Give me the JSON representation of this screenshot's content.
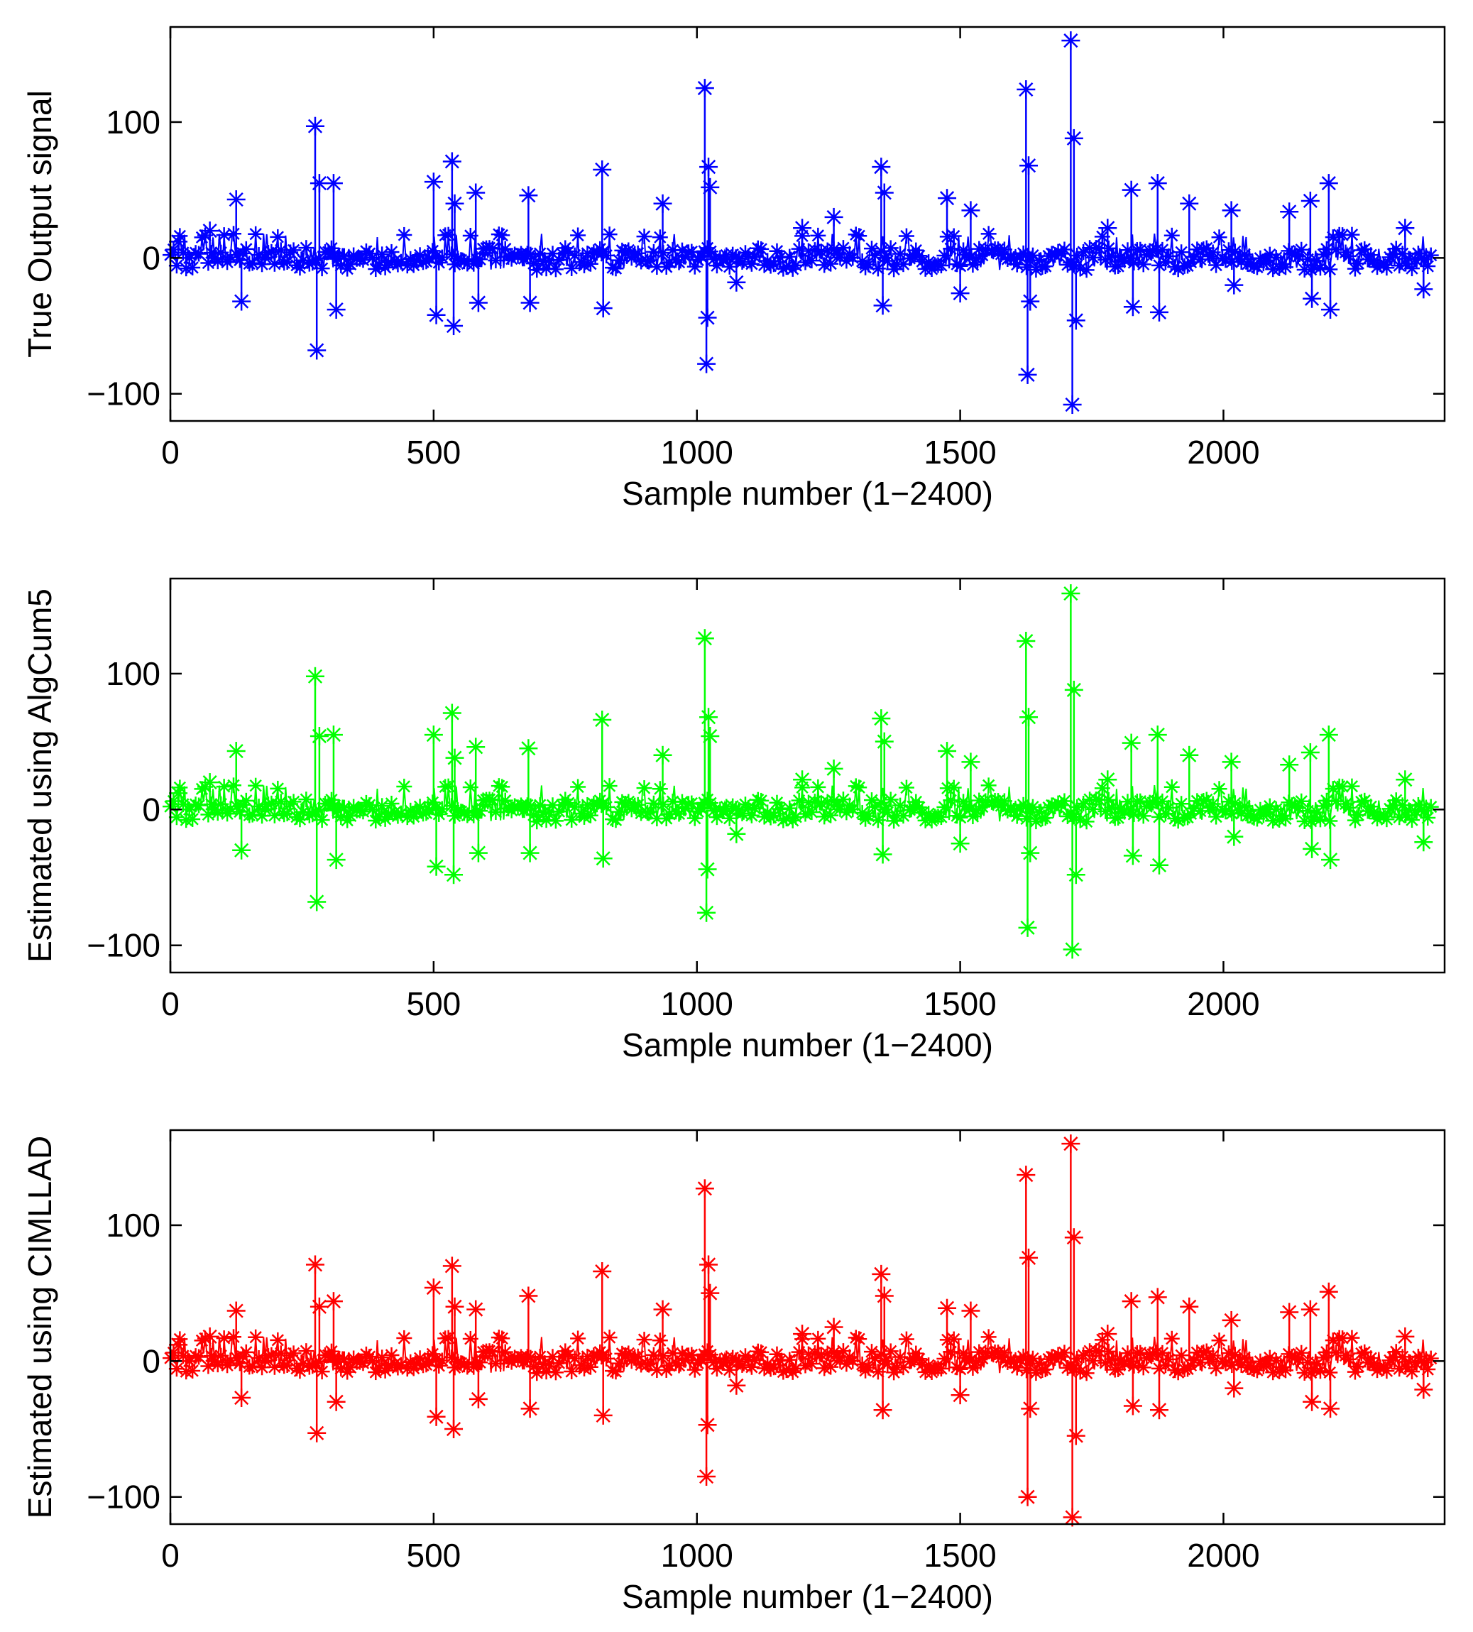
{
  "chart_data": [
    {
      "type": "line",
      "marker": "asterisk",
      "color": "#0000ff",
      "xlabel": "Sample number (1−2400)",
      "ylabel": "True Output signal",
      "xlim": [
        0,
        2420
      ],
      "ylim": [
        -120,
        170
      ],
      "xticks": [
        0,
        500,
        1000,
        1500,
        2000
      ],
      "xtick_labels": [
        "0",
        "500",
        "1000",
        "1500",
        "2000"
      ],
      "yticks": [
        100,
        0,
        -100
      ],
      "ytick_labels": [
        "100",
        "0",
        "−100"
      ],
      "n_samples": 2400,
      "series": [
        {
          "name": "True Output signal",
          "x": [
            15,
            75,
            125,
            135,
            275,
            278,
            283,
            310,
            315,
            500,
            505,
            535,
            538,
            540,
            580,
            585,
            680,
            683,
            820,
            822,
            935,
            1015,
            1018,
            1020,
            1022,
            1025,
            1075,
            1200,
            1260,
            1350,
            1353,
            1356,
            1475,
            1500,
            1520,
            1625,
            1628,
            1630,
            1633,
            1710,
            1713,
            1716,
            1720,
            1780,
            1825,
            1828,
            1875,
            1878,
            1935,
            2015,
            2020,
            2125,
            2165,
            2168,
            2200,
            2203,
            2345,
            2380
          ],
          "values": [
            12,
            20,
            43,
            -32,
            97,
            -68,
            55,
            55,
            -38,
            56,
            -42,
            71,
            -50,
            40,
            48,
            -33,
            46,
            -33,
            65,
            -37,
            40,
            125,
            -78,
            -44,
            67,
            52,
            -18,
            22,
            30,
            67,
            -35,
            48,
            44,
            -26,
            35,
            124,
            -86,
            68,
            -32,
            160,
            -108,
            88,
            -46,
            22,
            50,
            -36,
            55,
            -40,
            40,
            35,
            -20,
            34,
            42,
            -30,
            55,
            -38,
            22,
            -23
          ]
        }
      ]
    },
    {
      "type": "line",
      "marker": "asterisk",
      "color": "#00ff00",
      "xlabel": "Sample number (1−2400)",
      "ylabel": "Estimated using AlgCum5",
      "xlim": [
        0,
        2420
      ],
      "ylim": [
        -120,
        170
      ],
      "xticks": [
        0,
        500,
        1000,
        1500,
        2000
      ],
      "xtick_labels": [
        "0",
        "500",
        "1000",
        "1500",
        "2000"
      ],
      "yticks": [
        100,
        0,
        -100
      ],
      "ytick_labels": [
        "100",
        "0",
        "−100"
      ],
      "n_samples": 2400,
      "series": [
        {
          "name": "Estimated using AlgCum5",
          "x": [
            15,
            75,
            125,
            135,
            275,
            278,
            283,
            310,
            315,
            500,
            505,
            535,
            538,
            540,
            580,
            585,
            680,
            683,
            820,
            822,
            935,
            1015,
            1018,
            1020,
            1022,
            1025,
            1075,
            1200,
            1260,
            1350,
            1353,
            1356,
            1475,
            1500,
            1520,
            1625,
            1628,
            1630,
            1633,
            1710,
            1713,
            1716,
            1720,
            1780,
            1825,
            1828,
            1875,
            1878,
            1935,
            2015,
            2020,
            2125,
            2165,
            2168,
            2200,
            2203,
            2345,
            2380
          ],
          "values": [
            12,
            20,
            43,
            -30,
            98,
            -68,
            54,
            55,
            -37,
            55,
            -42,
            71,
            -48,
            38,
            46,
            -32,
            45,
            -32,
            66,
            -36,
            40,
            126,
            -76,
            -44,
            68,
            54,
            -18,
            22,
            30,
            67,
            -33,
            50,
            43,
            -25,
            35,
            124,
            -87,
            68,
            -32,
            159,
            -103,
            88,
            -48,
            22,
            49,
            -34,
            55,
            -41,
            40,
            35,
            -20,
            33,
            42,
            -29,
            55,
            -37,
            22,
            -24
          ]
        }
      ]
    },
    {
      "type": "line",
      "marker": "asterisk",
      "color": "#ff0000",
      "xlabel": "Sample number (1−2400)",
      "ylabel": "Estimated using CIMLLAD",
      "xlim": [
        0,
        2420
      ],
      "ylim": [
        -120,
        170
      ],
      "xticks": [
        0,
        500,
        1000,
        1500,
        2000
      ],
      "xtick_labels": [
        "0",
        "500",
        "1000",
        "1500",
        "2000"
      ],
      "yticks": [
        100,
        0,
        -100
      ],
      "ytick_labels": [
        "100",
        "0",
        "−100"
      ],
      "n_samples": 2400,
      "series": [
        {
          "name": "Estimated using CIMLLAD",
          "x": [
            15,
            75,
            125,
            135,
            275,
            278,
            283,
            310,
            315,
            500,
            505,
            535,
            538,
            540,
            580,
            585,
            680,
            683,
            820,
            822,
            935,
            1015,
            1018,
            1020,
            1022,
            1025,
            1075,
            1200,
            1260,
            1350,
            1353,
            1356,
            1475,
            1500,
            1520,
            1625,
            1628,
            1630,
            1633,
            1710,
            1713,
            1716,
            1720,
            1780,
            1825,
            1828,
            1875,
            1878,
            1935,
            2015,
            2020,
            2125,
            2165,
            2168,
            2200,
            2203,
            2345,
            2380
          ],
          "values": [
            12,
            18,
            37,
            -27,
            71,
            -53,
            40,
            44,
            -30,
            54,
            -41,
            70,
            -50,
            40,
            38,
            -28,
            48,
            -35,
            66,
            -40,
            38,
            127,
            -85,
            -47,
            71,
            50,
            -18,
            20,
            25,
            64,
            -36,
            48,
            39,
            -25,
            37,
            137,
            -100,
            76,
            -35,
            160,
            -115,
            91,
            -55,
            20,
            44,
            -33,
            47,
            -36,
            40,
            30,
            -20,
            36,
            38,
            -30,
            51,
            -35,
            18,
            -21
          ]
        }
      ]
    }
  ]
}
